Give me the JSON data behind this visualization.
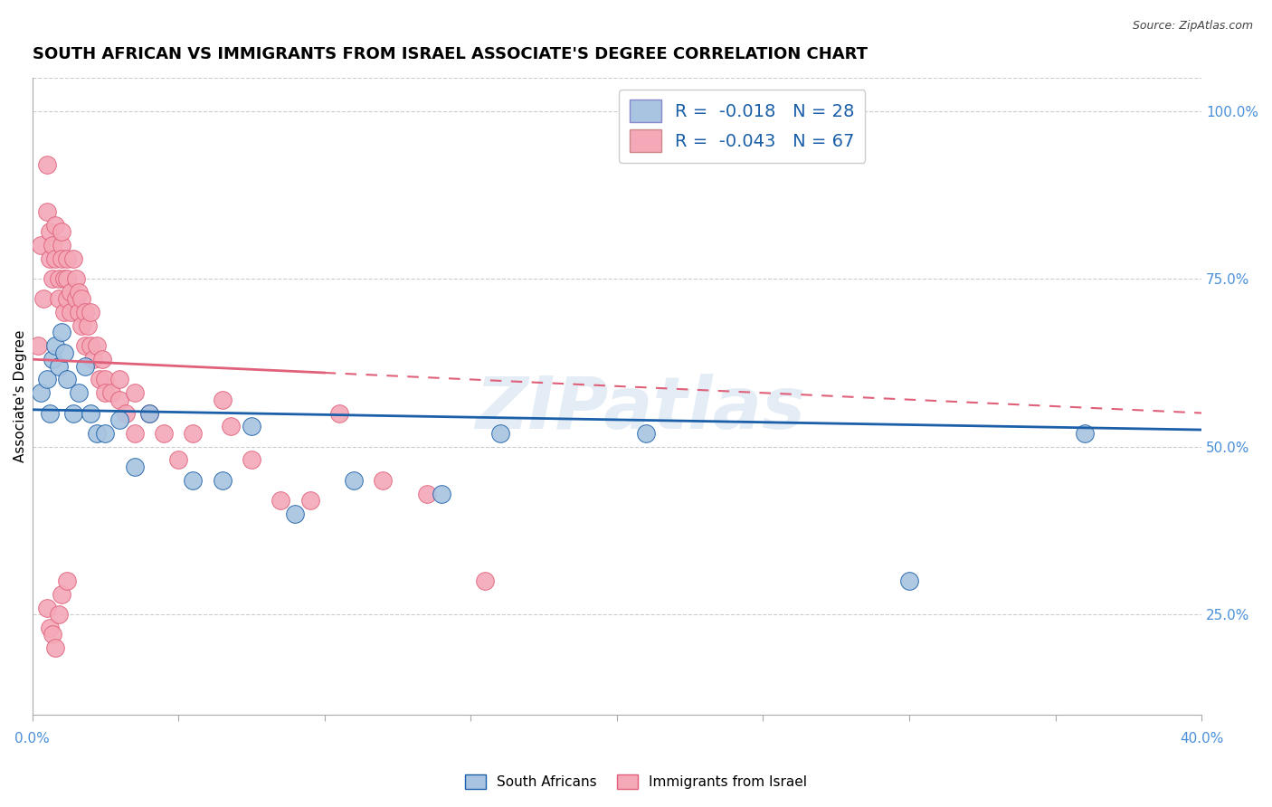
{
  "title": "SOUTH AFRICAN VS IMMIGRANTS FROM ISRAEL ASSOCIATE'S DEGREE CORRELATION CHART",
  "source": "Source: ZipAtlas.com",
  "ylabel": "Associate's Degree",
  "xlim": [
    0.0,
    40.0
  ],
  "ylim": [
    10.0,
    105.0
  ],
  "right_yticks": [
    25.0,
    50.0,
    75.0,
    100.0
  ],
  "watermark": "ZIPatlas",
  "south_african_color": "#a8c4e0",
  "israel_color": "#f4a8b8",
  "south_african_line_color": "#1a5fa8",
  "israel_line_color": "#e0607a",
  "legend_line1": "R =  -0.018   N = 28",
  "legend_line2": "R =  -0.043   N = 67",
  "grid_color": "#cccccc",
  "background_color": "#ffffff",
  "title_fontsize": 13,
  "axis_label_fontsize": 11,
  "tick_fontsize": 11,
  "legend_fontsize": 14,
  "south_african_x": [
    0.3,
    0.5,
    0.6,
    0.7,
    0.8,
    0.9,
    1.0,
    1.1,
    1.2,
    1.4,
    1.6,
    1.8,
    2.0,
    2.2,
    2.5,
    3.0,
    3.5,
    4.0,
    5.5,
    6.5,
    7.5,
    9.0,
    11.0,
    14.0,
    16.0,
    21.0,
    30.0,
    36.0
  ],
  "south_african_y": [
    58.0,
    60.0,
    55.0,
    63.0,
    65.0,
    62.0,
    67.0,
    64.0,
    60.0,
    55.0,
    58.0,
    62.0,
    55.0,
    52.0,
    52.0,
    54.0,
    47.0,
    55.0,
    45.0,
    45.0,
    53.0,
    40.0,
    45.0,
    43.0,
    52.0,
    52.0,
    30.0,
    52.0
  ],
  "israel_x": [
    0.2,
    0.3,
    0.4,
    0.5,
    0.5,
    0.6,
    0.6,
    0.7,
    0.7,
    0.8,
    0.8,
    0.9,
    0.9,
    1.0,
    1.0,
    1.0,
    1.1,
    1.1,
    1.2,
    1.2,
    1.2,
    1.3,
    1.3,
    1.4,
    1.5,
    1.5,
    1.6,
    1.6,
    1.7,
    1.7,
    1.8,
    1.8,
    1.9,
    2.0,
    2.0,
    2.1,
    2.2,
    2.3,
    2.4,
    2.5,
    2.5,
    2.7,
    3.0,
    3.0,
    3.2,
    3.5,
    3.5,
    4.0,
    4.5,
    5.0,
    5.5,
    6.5,
    6.8,
    7.5,
    8.5,
    9.5,
    10.5,
    12.0,
    13.5,
    15.5,
    0.5,
    0.6,
    0.7,
    0.8,
    0.9,
    1.0,
    1.2
  ],
  "israel_y": [
    65.0,
    80.0,
    72.0,
    85.0,
    92.0,
    78.0,
    82.0,
    75.0,
    80.0,
    78.0,
    83.0,
    72.0,
    75.0,
    80.0,
    78.0,
    82.0,
    75.0,
    70.0,
    78.0,
    72.0,
    75.0,
    70.0,
    73.0,
    78.0,
    72.0,
    75.0,
    70.0,
    73.0,
    68.0,
    72.0,
    65.0,
    70.0,
    68.0,
    65.0,
    70.0,
    63.0,
    65.0,
    60.0,
    63.0,
    60.0,
    58.0,
    58.0,
    57.0,
    60.0,
    55.0,
    58.0,
    52.0,
    55.0,
    52.0,
    48.0,
    52.0,
    57.0,
    53.0,
    48.0,
    42.0,
    42.0,
    55.0,
    45.0,
    43.0,
    30.0,
    26.0,
    23.0,
    22.0,
    20.0,
    25.0,
    28.0,
    30.0
  ],
  "israel_solid_end_x": 10.0,
  "sa_trend_y0": 55.5,
  "sa_trend_y1": 52.5,
  "is_trend_y0": 63.0,
  "is_trend_y1": 55.0
}
